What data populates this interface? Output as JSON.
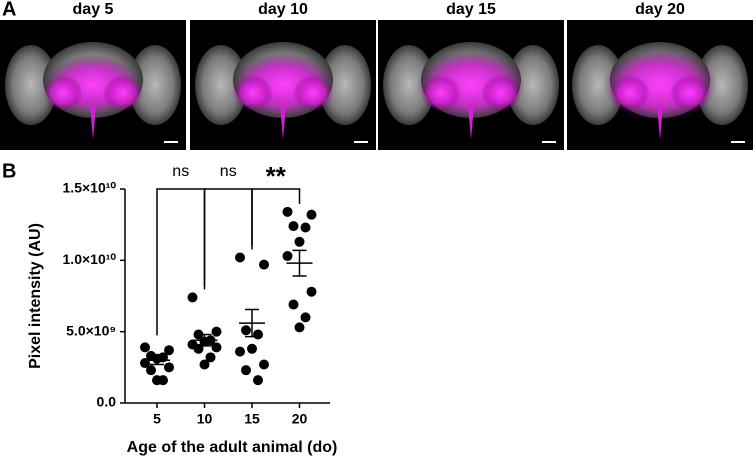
{
  "panel_labels": [
    "A",
    "B"
  ],
  "images": [
    "day 5",
    "day 10",
    "day 15",
    "day 20"
  ],
  "chart_data": {
    "type": "scatter",
    "xlabel": "Age of the adult animal (do)",
    "ylabel": "Pixel intensity (AU)",
    "categories": [
      "5",
      "10",
      "15",
      "20"
    ],
    "values": [
      [
        3900000000.0,
        3700000000.0,
        3300000000.0,
        3200000000.0,
        3100000000.0,
        2800000000.0,
        2500000000.0,
        2300000000.0,
        1600000000.0,
        1600000000.0
      ],
      [
        7400000000.0,
        5000000000.0,
        4800000000.0,
        4400000000.0,
        4300000000.0,
        4100000000.0,
        3900000000.0,
        3800000000.0,
        3200000000.0,
        2700000000.0
      ],
      [
        10200000000.0,
        9700000000.0,
        5100000000.0,
        4800000000.0,
        3800000000.0,
        3600000000.0,
        2700000000.0,
        2300000000.0,
        1600000000.0
      ],
      [
        13400000000.0,
        13200000000.0,
        12400000000.0,
        12300000000.0,
        11300000000.0,
        10300000000.0,
        7800000000.0,
        6900000000.0,
        6000000000.0,
        5300000000.0
      ]
    ],
    "mean": [
      3000000000.0,
      4400000000.0,
      5600000000.0,
      9800000000.0
    ],
    "sem": [
      300000000.0,
      400000000.0,
      950000000.0,
      900000000.0
    ],
    "color": "#000000",
    "ylim": [
      0,
      15000000000.0
    ],
    "yticks": [
      {
        "value": 0,
        "label": "0.0"
      },
      {
        "value": 5000000000.0,
        "label": "5.0×10⁹"
      },
      {
        "value": 10000000000.0,
        "label": "1.0×10¹⁰"
      },
      {
        "value": 15000000000.0,
        "label": "1.5×10¹⁰"
      }
    ],
    "comparisons": [
      {
        "label": "ns",
        "pair": [
          0,
          1
        ]
      },
      {
        "label": "ns",
        "pair": [
          1,
          2
        ]
      },
      {
        "label": "**",
        "pair": [
          2,
          3
        ]
      }
    ]
  }
}
